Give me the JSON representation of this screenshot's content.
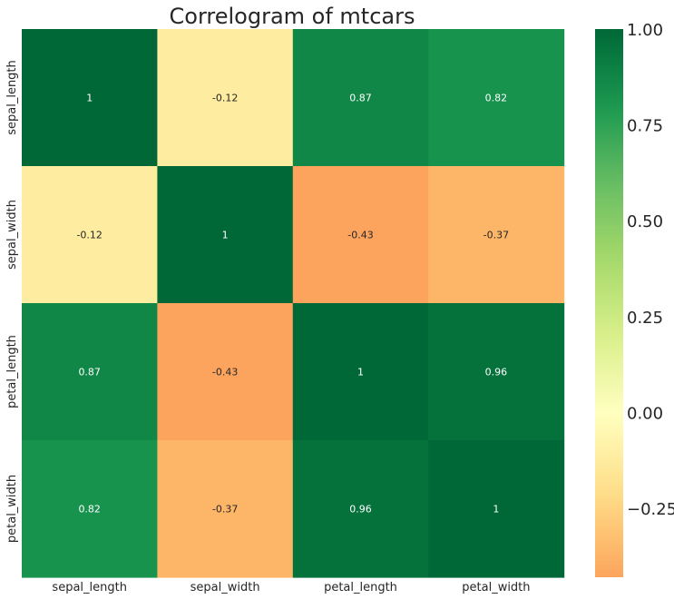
{
  "chart_data": {
    "type": "heatmap",
    "title": "Correlogram of mtcars",
    "xlabel": "",
    "ylabel": "",
    "x_labels": [
      "sepal_length",
      "sepal_width",
      "petal_length",
      "petal_width"
    ],
    "y_labels": [
      "sepal_length",
      "sepal_width",
      "petal_length",
      "petal_width"
    ],
    "values": [
      [
        1.0,
        -0.12,
        0.87,
        0.82
      ],
      [
        -0.12,
        1.0,
        -0.43,
        -0.37
      ],
      [
        0.87,
        -0.43,
        1.0,
        0.96
      ],
      [
        0.82,
        -0.37,
        0.96,
        1.0
      ]
    ],
    "annotations": [
      [
        "1",
        "-0.12",
        "0.87",
        "0.82"
      ],
      [
        "-0.12",
        "1",
        "-0.43",
        "-0.37"
      ],
      [
        "0.87",
        "-0.43",
        "1",
        "0.96"
      ],
      [
        "0.82",
        "-0.37",
        "0.96",
        "1"
      ]
    ],
    "colormap": "RdYlGn",
    "colorbar": {
      "range": [
        -0.43,
        1.0
      ],
      "ticks": [
        1.0,
        0.75,
        0.5,
        0.25,
        0.0,
        -0.25
      ],
      "tick_labels": [
        "1.00",
        "0.75",
        "0.50",
        "0.25",
        "0.00",
        "−0.25"
      ]
    },
    "grid": false
  }
}
